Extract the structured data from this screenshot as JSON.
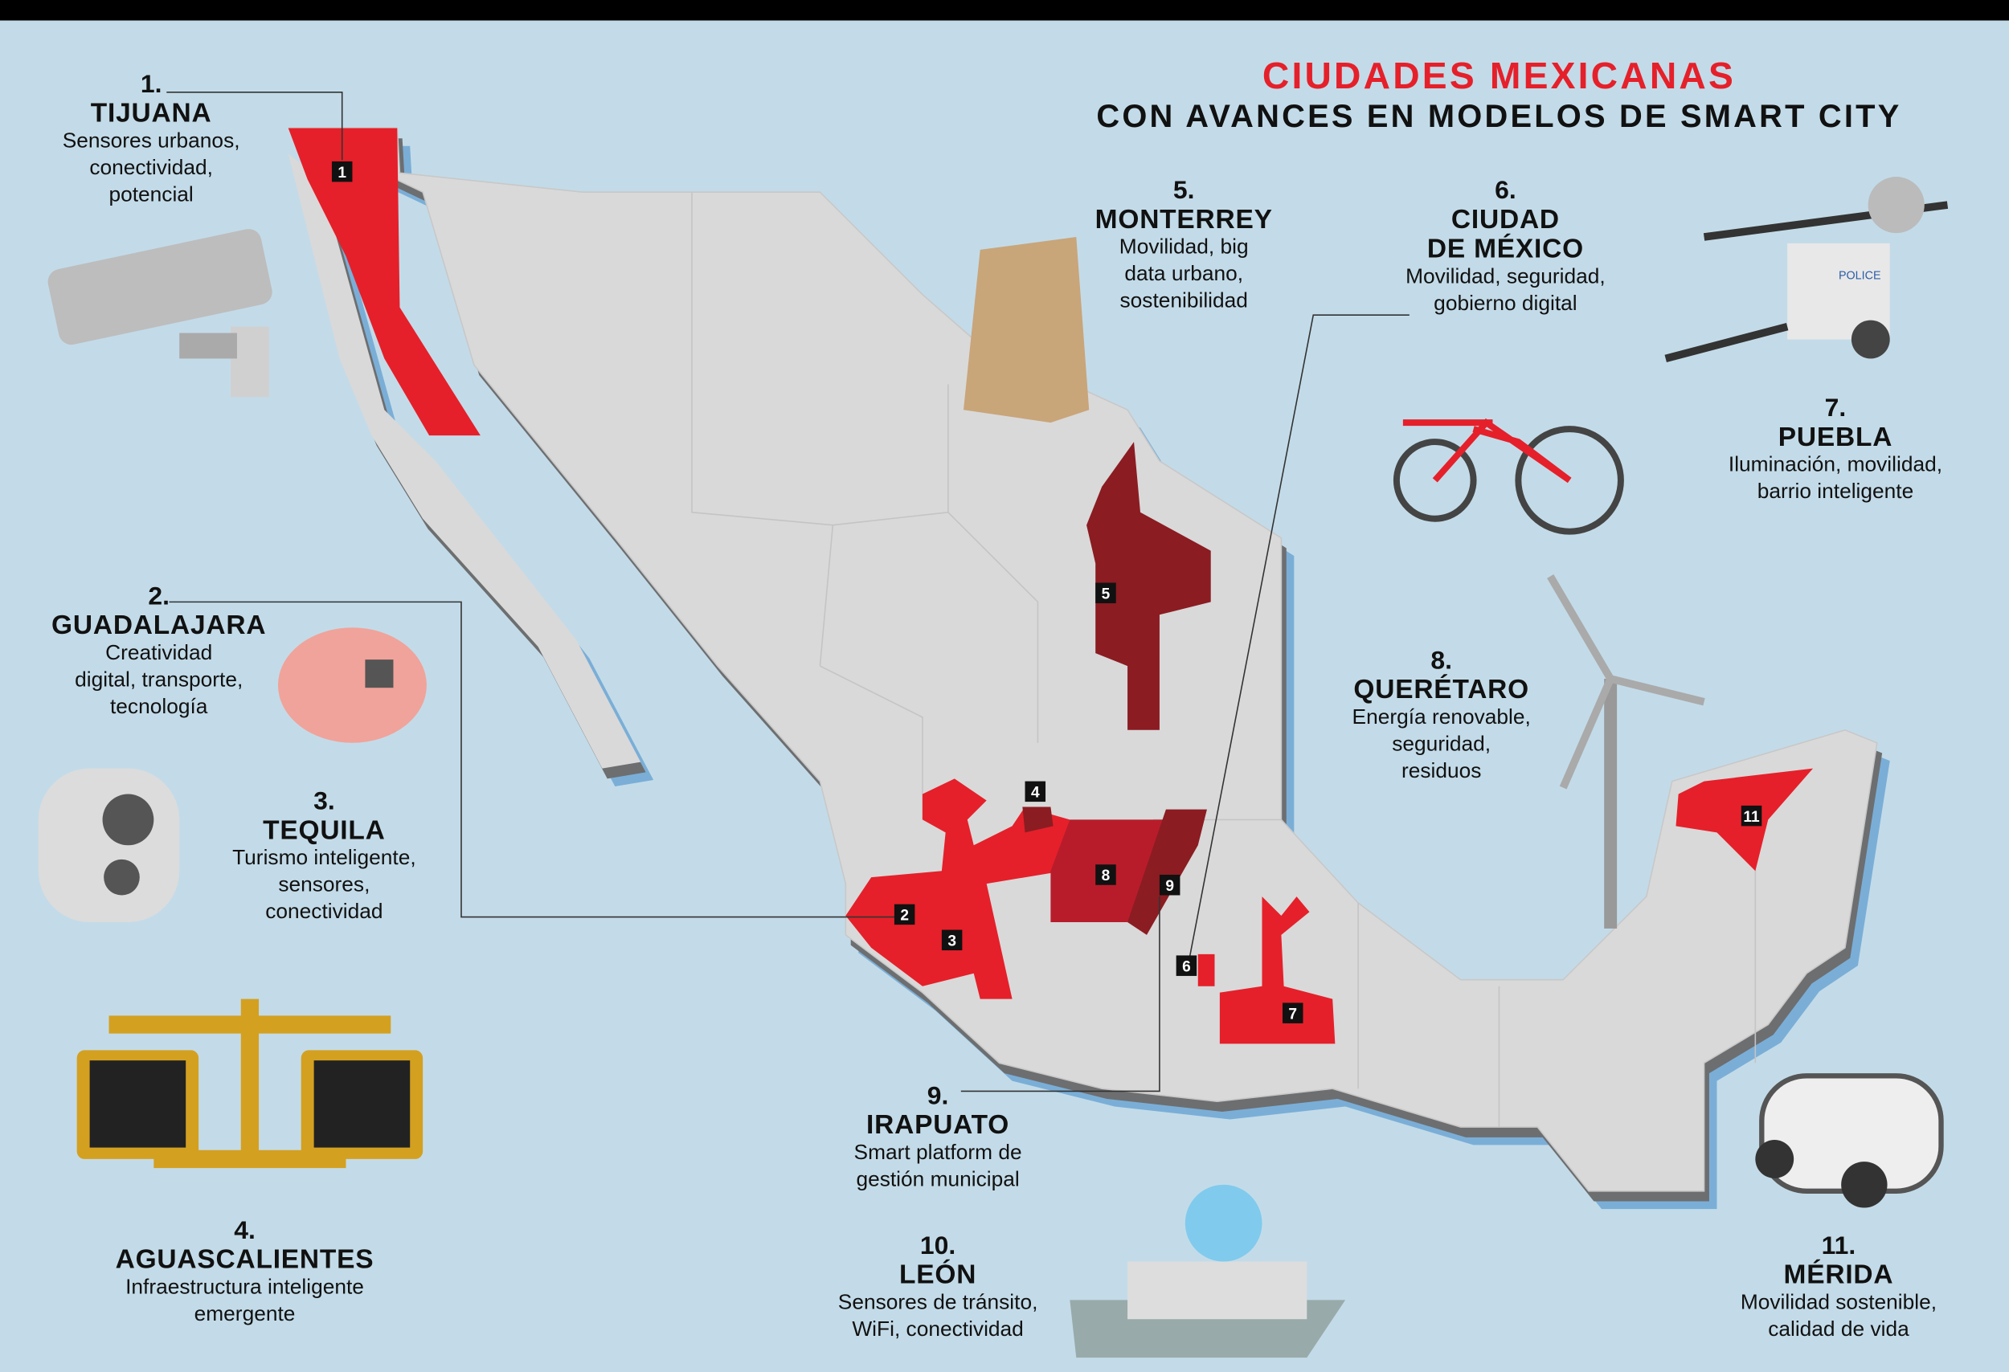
{
  "title": {
    "line1": "CIUDADES MEXICANAS",
    "line2": "CON AVANCES EN MODELOS DE SMART CITY"
  },
  "colors": {
    "background": "#c3dbe8",
    "land": "#d9d9d9",
    "highlight": "#e5202a",
    "dark_highlight": "#8b1c22",
    "medium_highlight": "#b81c2a",
    "shadow": "#6d6e70",
    "coast": "#5b9bd0"
  },
  "cities": [
    {
      "num": "1.",
      "name": "TIJUANA",
      "desc": [
        "Sensores urbanos,",
        "conectividad,",
        "potencial"
      ],
      "marker": "1",
      "icon": "security-camera-icon"
    },
    {
      "num": "2.",
      "name": "GUADALAJARA",
      "desc": [
        "Creatividad",
        "digital, transporte,",
        "tecnología"
      ],
      "marker": "2",
      "icon": "brain-chip-icon"
    },
    {
      "num": "3.",
      "name": "TEQUILA",
      "desc": [
        "Turismo inteligente,",
        "sensores,",
        "conectividad"
      ],
      "marker": "3",
      "icon": "dome-camera-icon"
    },
    {
      "num": "4.",
      "name": "AGUASCALIENTES",
      "desc": [
        "Infraestructura inteligente",
        "emergente"
      ],
      "marker": "4",
      "icon": "pedestrian-signal-icon"
    },
    {
      "num": "5.",
      "name": "MONTERREY",
      "desc": [
        "Movilidad, big",
        "data urbano,",
        "sostenibilidad"
      ],
      "marker": "5",
      "icon": "paper-bag-icon"
    },
    {
      "num": "6.",
      "name": "CIUDAD",
      "name2": "DE MÉXICO",
      "desc": [
        "Movilidad, seguridad,",
        "gobierno digital"
      ],
      "marker": "6",
      "icon": "bicycle-icon"
    },
    {
      "num": "7.",
      "name": "PUEBLA",
      "desc": [
        "Iluminación, movilidad,",
        "barrio inteligente"
      ],
      "marker": "7",
      "icon": "light-tower-trailer-icon",
      "icon_text": "POLICE"
    },
    {
      "num": "8.",
      "name": "QUERÉTARO",
      "desc": [
        "Energía renovable,",
        "seguridad,",
        "residuos"
      ],
      "marker": "8",
      "icon": "wind-turbine-icon"
    },
    {
      "num": "9.",
      "name": "IRAPUATO",
      "desc": [
        "Smart platform de",
        "gestión municipal"
      ],
      "marker": "9"
    },
    {
      "num": "10.",
      "name": "LEÓN",
      "desc": [
        "Sensores de tránsito,",
        "WiFi, conectividad"
      ],
      "icon": "smart-kiosk-icon"
    },
    {
      "num": "11.",
      "name": "MÉRIDA",
      "desc": [
        "Movilidad sostenible,",
        "calidad de vida"
      ],
      "marker": "11",
      "icon": "electric-car-icon"
    }
  ]
}
